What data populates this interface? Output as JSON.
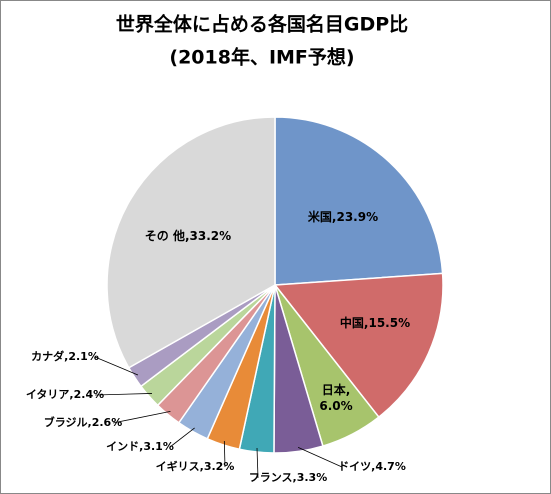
{
  "chart_data": {
    "type": "pie",
    "title": "世界全体に占める各国名目GDP比",
    "subtitle": "(2018年、IMF予想)",
    "categories": [
      "米国",
      "中国",
      "日本",
      "ドイツ",
      "フランス",
      "イギリス",
      "インド",
      "ブラジル",
      "イタリア",
      "カナダ",
      "その 他"
    ],
    "values": [
      23.9,
      15.5,
      6.0,
      4.7,
      3.3,
      3.2,
      3.1,
      2.6,
      2.4,
      2.1,
      33.2
    ],
    "value_labels": [
      "23.9%",
      "15.5%",
      "6.0%",
      "4.7%",
      "3.3%",
      "3.2%",
      "3.1%",
      "2.6%",
      "2.4%",
      "2.1%",
      "33.2%"
    ],
    "label_separator": ",",
    "colors": [
      "#6f95c9",
      "#d06b6a",
      "#a7c46c",
      "#7a5d97",
      "#40a8b6",
      "#e88b38",
      "#95b1d9",
      "#dc9595",
      "#bad69b",
      "#aa9cc2",
      "#d9d9d9"
    ]
  }
}
